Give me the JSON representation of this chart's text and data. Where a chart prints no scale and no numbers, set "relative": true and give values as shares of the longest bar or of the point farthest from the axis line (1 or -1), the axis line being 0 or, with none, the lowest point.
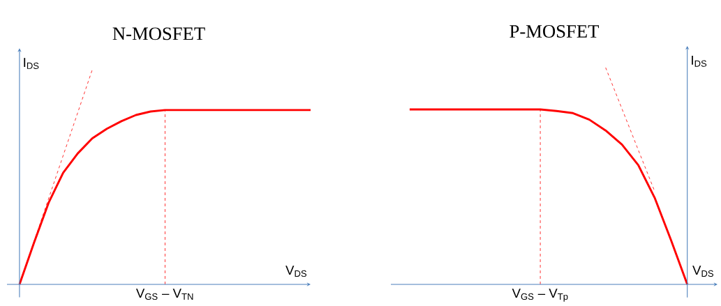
{
  "chart_data": [
    {
      "type": "line",
      "title": "N-MOSFET",
      "xlabel": "V$_{DS}$",
      "ylabel": "I$_{DS}$",
      "relative": true,
      "annotations": [
        "V$_{GS}$ – V$_{TN}$"
      ],
      "categories": [
        null,
        null,
        null,
        null,
        null,
        null,
        null,
        null,
        null,
        null,
        null,
        null,
        null,
        null,
        null,
        null,
        null,
        null,
        null,
        null,
        null
      ],
      "series": [
        {
          "color": "#ff0000",
          "values": [
            0,
            0.195,
            0.38,
            0.52,
            0.61,
            0.68,
            0.725,
            0.76,
            0.789,
            0.805,
            0.812,
            0.812,
            0.812,
            0.812,
            0.812,
            0.812,
            0.812,
            0.812,
            0.812,
            0.812,
            0.812
          ]
        },
        {
          "color": "#ff0000",
          "line_style": "dashed",
          "values": [
            0,
            0.2,
            0.4,
            0.6,
            0.8,
            1.0,
            null,
            null,
            null,
            null,
            null,
            null,
            null,
            null,
            null,
            null,
            null,
            null,
            null,
            null,
            null
          ]
        }
      ]
    },
    {
      "type": "line",
      "title": "P-MOSFET",
      "xlabel": "V$_{DS}$",
      "ylabel": "I$_{DS}$",
      "relative": true,
      "annotations": [
        "V$_{GS}$ – V$_{Tp}$"
      ],
      "categories": [
        null,
        null,
        null,
        null,
        null,
        null,
        null,
        null,
        null,
        null,
        null,
        null,
        null,
        null,
        null,
        null,
        null,
        null
      ],
      "series": [
        {
          "color": "#ff0000",
          "values": [
            0.807,
            0.807,
            0.807,
            0.807,
            0.807,
            0.807,
            0.807,
            0.807,
            0.807,
            0.8,
            0.79,
            0.76,
            0.71,
            0.645,
            0.55,
            0.4,
            0.205,
            0
          ]
        },
        {
          "color": "#ff0000",
          "line_style": "dashed",
          "values": [
            null,
            null,
            null,
            null,
            null,
            null,
            null,
            null,
            null,
            null,
            null,
            null,
            1.0,
            0.81,
            0.62,
            0.43,
            null,
            null
          ]
        }
      ]
    }
  ]
}
